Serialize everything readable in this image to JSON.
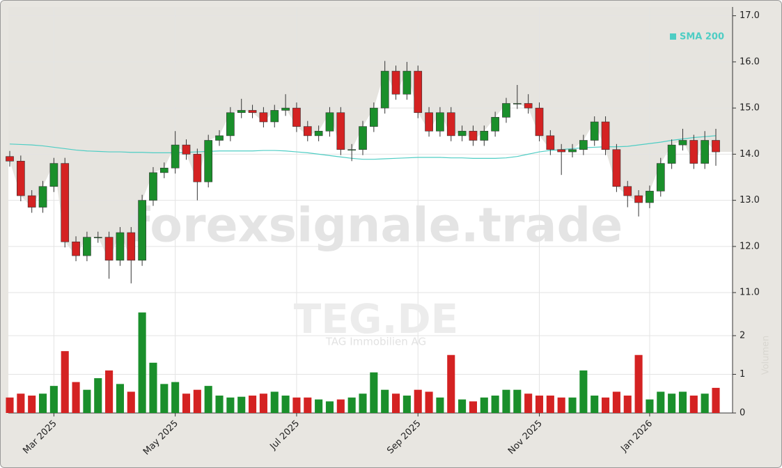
{
  "chart_data": {
    "type": "candlestick",
    "watermark": "forexsignale.trade",
    "symbol": "TEG.DE",
    "name": "TAG Immobilien AG",
    "categories": [
      null,
      null,
      null,
      null,
      "Mar 2025",
      null,
      null,
      null,
      null,
      null,
      null,
      null,
      null,
      null,
      null,
      "May 2025",
      null,
      null,
      null,
      null,
      null,
      null,
      null,
      null,
      null,
      null,
      "Jul 2025",
      null,
      null,
      null,
      null,
      null,
      null,
      null,
      null,
      null,
      null,
      "Sep 2025",
      null,
      null,
      null,
      null,
      null,
      null,
      null,
      null,
      null,
      null,
      "Nov 2025",
      null,
      null,
      null,
      null,
      null,
      null,
      null,
      null,
      null,
      "Jan 2026",
      null,
      null,
      null,
      null,
      null,
      null
    ],
    "open": [
      13.95,
      13.85,
      13.1,
      12.85,
      13.3,
      13.8,
      12.1,
      11.8,
      12.2,
      12.2,
      11.7,
      12.3,
      11.7,
      13.0,
      13.6,
      13.7,
      14.2,
      14.0,
      13.4,
      14.3,
      14.4,
      14.9,
      14.95,
      14.9,
      14.7,
      14.95,
      15.0,
      14.6,
      14.4,
      14.5,
      14.9,
      14.1,
      14.1,
      14.6,
      15.0,
      15.8,
      15.3,
      15.8,
      14.9,
      14.5,
      14.9,
      14.4,
      14.5,
      14.3,
      14.5,
      14.8,
      15.1,
      15.1,
      15.0,
      14.4,
      14.1,
      14.05,
      14.1,
      14.3,
      14.7,
      14.1,
      13.3,
      13.1,
      12.95,
      13.2,
      13.8,
      14.2,
      14.3,
      13.8,
      14.3
    ],
    "high": [
      14.07,
      13.97,
      13.22,
      13.42,
      13.92,
      13.92,
      12.22,
      12.32,
      12.32,
      12.32,
      12.42,
      12.42,
      13.12,
      13.72,
      13.82,
      14.5,
      14.32,
      14.12,
      14.42,
      14.52,
      15.02,
      15.2,
      15.07,
      15.02,
      15.07,
      15.3,
      15.12,
      14.72,
      14.62,
      15.02,
      15.02,
      14.22,
      14.72,
      15.12,
      16.02,
      15.92,
      16.0,
      15.92,
      15.02,
      15.02,
      15.02,
      14.62,
      14.62,
      14.62,
      14.92,
      15.22,
      15.5,
      15.3,
      15.12,
      14.52,
      14.22,
      14.22,
      14.42,
      14.82,
      14.82,
      14.22,
      13.42,
      13.22,
      13.32,
      13.92,
      14.32,
      14.55,
      14.42,
      14.5,
      14.55
    ],
    "low": [
      13.73,
      12.98,
      12.73,
      12.73,
      13.18,
      11.98,
      11.68,
      11.68,
      12.08,
      11.3,
      11.58,
      11.2,
      11.58,
      12.88,
      13.48,
      13.58,
      13.88,
      13.0,
      13.28,
      14.18,
      14.28,
      14.78,
      14.78,
      14.58,
      14.58,
      14.83,
      14.48,
      14.28,
      14.28,
      14.38,
      13.98,
      13.85,
      13.98,
      14.48,
      14.88,
      15.18,
      15.18,
      14.78,
      14.38,
      14.38,
      14.28,
      14.28,
      14.18,
      14.18,
      14.38,
      14.68,
      14.98,
      14.88,
      14.28,
      13.98,
      13.55,
      13.93,
      13.98,
      14.18,
      13.98,
      13.18,
      12.85,
      12.65,
      12.83,
      13.08,
      13.68,
      14.08,
      13.68,
      13.68,
      13.75
    ],
    "close": [
      13.85,
      13.1,
      12.85,
      13.3,
      13.8,
      12.1,
      11.8,
      12.2,
      12.2,
      11.7,
      12.3,
      11.7,
      13.0,
      13.6,
      13.7,
      14.2,
      14.0,
      13.4,
      14.3,
      14.4,
      14.9,
      14.95,
      14.9,
      14.7,
      14.95,
      15.0,
      14.6,
      14.4,
      14.5,
      14.9,
      14.1,
      14.1,
      14.6,
      15.0,
      15.8,
      15.3,
      15.8,
      14.9,
      14.5,
      14.9,
      14.4,
      14.5,
      14.3,
      14.5,
      14.8,
      15.1,
      15.1,
      15.0,
      14.4,
      14.1,
      14.05,
      14.1,
      14.3,
      14.7,
      14.1,
      13.3,
      13.1,
      12.95,
      13.2,
      13.8,
      14.2,
      14.3,
      13.8,
      14.3,
      14.05
    ],
    "up_color": "#1a8f2b",
    "down_color": "#d42222",
    "ylim": [
      10.7,
      17.1
    ],
    "yticks": [
      {
        "value": 11,
        "label": "11.0"
      },
      {
        "value": 12,
        "label": "12.0"
      },
      {
        "value": 13,
        "label": "13.0"
      },
      {
        "value": 14,
        "label": "14.0"
      },
      {
        "value": 15,
        "label": "15.0"
      },
      {
        "value": 16,
        "label": "16.0"
      },
      {
        "value": 17,
        "label": "17.0"
      }
    ],
    "grid": true,
    "legend": "top-right",
    "series": [
      {
        "name": "SMA 200",
        "color": "#4ecdc4",
        "values": [
          14.22,
          14.21,
          14.2,
          14.18,
          14.15,
          14.12,
          14.09,
          14.07,
          14.06,
          14.05,
          14.05,
          14.04,
          14.04,
          14.03,
          14.03,
          14.03,
          14.04,
          14.05,
          14.06,
          14.07,
          14.07,
          14.07,
          14.07,
          14.08,
          14.08,
          14.07,
          14.05,
          14.03,
          14.0,
          13.97,
          13.94,
          13.91,
          13.89,
          13.89,
          13.9,
          13.91,
          13.92,
          13.93,
          13.93,
          13.93,
          13.92,
          13.92,
          13.91,
          13.91,
          13.91,
          13.92,
          13.95,
          14.0,
          14.05,
          14.08,
          14.1,
          14.12,
          14.14,
          14.15,
          14.16,
          14.16,
          14.17,
          14.2,
          14.23,
          14.26,
          14.3,
          14.33,
          14.36,
          14.38,
          14.4
        ]
      }
    ],
    "volume": {
      "label": "Volumen",
      "values": [
        0.4,
        0.5,
        0.45,
        0.5,
        0.7,
        1.6,
        0.8,
        0.6,
        0.9,
        1.1,
        0.75,
        0.55,
        2.6,
        1.3,
        0.75,
        0.8,
        0.5,
        0.6,
        0.7,
        0.45,
        0.4,
        0.42,
        0.45,
        0.5,
        0.55,
        0.45,
        0.4,
        0.4,
        0.35,
        0.3,
        0.35,
        0.4,
        0.5,
        1.05,
        0.6,
        0.5,
        0.45,
        0.6,
        0.55,
        0.4,
        1.5,
        0.35,
        0.3,
        0.4,
        0.45,
        0.6,
        0.6,
        0.5,
        0.45,
        0.45,
        0.4,
        0.4,
        1.1,
        0.45,
        0.4,
        0.55,
        0.45,
        1.5,
        0.35,
        0.55,
        0.5,
        0.55,
        0.45,
        0.5,
        0.65
      ],
      "ylim": [
        0,
        2.9
      ],
      "yticks": [
        0,
        1,
        2
      ]
    }
  }
}
